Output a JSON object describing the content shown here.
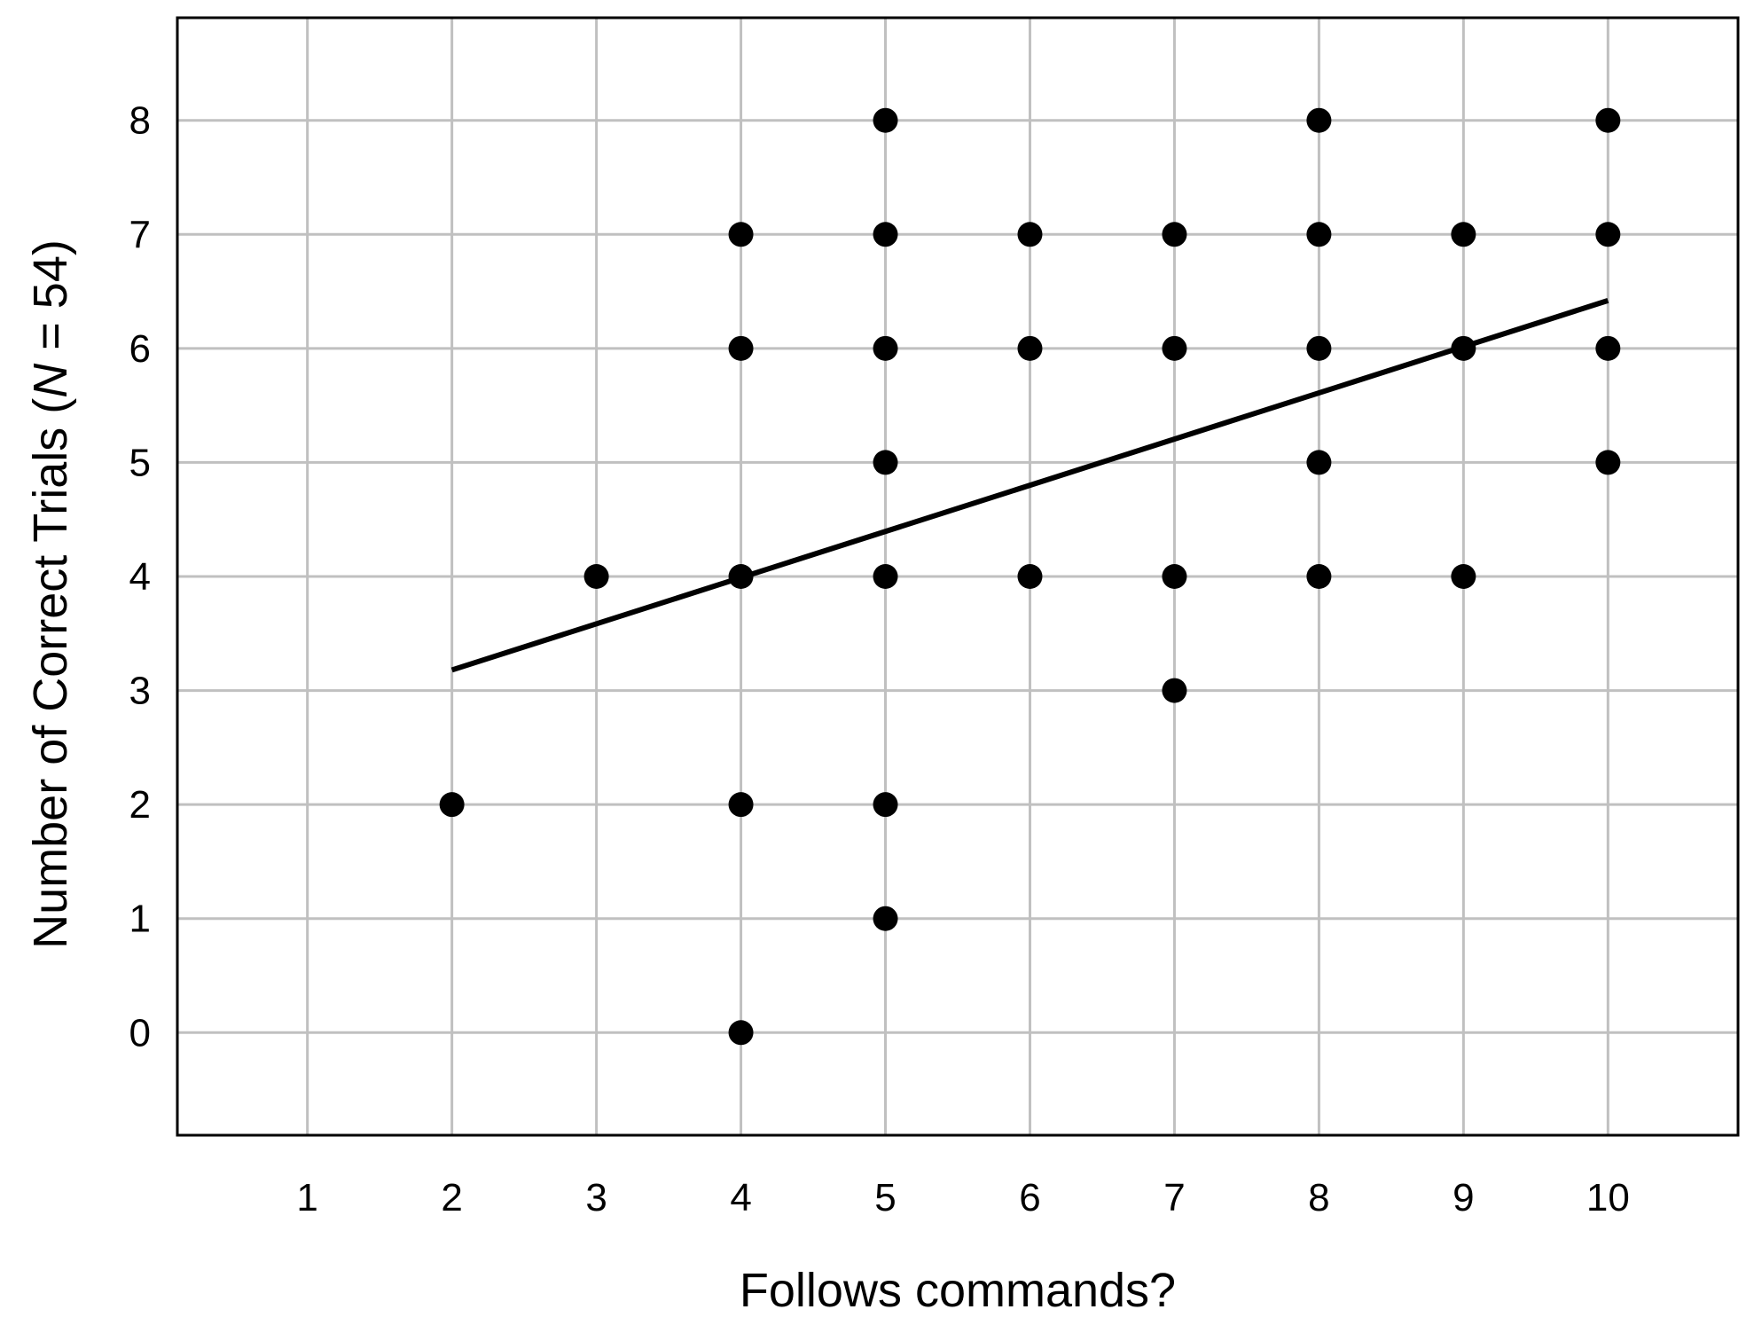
{
  "chart_data": {
    "type": "scatter",
    "xlabel": "Follows commands?",
    "ylabel_prefix": "Number of Correct Trials (",
    "ylabel_italic": "N",
    "ylabel_suffix": " = 54)",
    "xlim": [
      0.1,
      10.9
    ],
    "ylim": [
      -0.9,
      8.9
    ],
    "x_ticks": [
      1,
      2,
      3,
      4,
      5,
      6,
      7,
      8,
      9,
      10
    ],
    "y_ticks": [
      0,
      1,
      2,
      3,
      4,
      5,
      6,
      7,
      8
    ],
    "grid": true,
    "point_color": "#000000",
    "grid_color": "#c0c0c0",
    "points": [
      {
        "x": 2,
        "y": 2
      },
      {
        "x": 3,
        "y": 4
      },
      {
        "x": 4,
        "y": 0
      },
      {
        "x": 4,
        "y": 2
      },
      {
        "x": 4,
        "y": 4
      },
      {
        "x": 4,
        "y": 6
      },
      {
        "x": 4,
        "y": 7
      },
      {
        "x": 5,
        "y": 1
      },
      {
        "x": 5,
        "y": 2
      },
      {
        "x": 5,
        "y": 4
      },
      {
        "x": 5,
        "y": 5
      },
      {
        "x": 5,
        "y": 6
      },
      {
        "x": 5,
        "y": 7
      },
      {
        "x": 5,
        "y": 8
      },
      {
        "x": 6,
        "y": 4
      },
      {
        "x": 6,
        "y": 6
      },
      {
        "x": 6,
        "y": 7
      },
      {
        "x": 7,
        "y": 3
      },
      {
        "x": 7,
        "y": 4
      },
      {
        "x": 7,
        "y": 6
      },
      {
        "x": 7,
        "y": 7
      },
      {
        "x": 8,
        "y": 4
      },
      {
        "x": 8,
        "y": 5
      },
      {
        "x": 8,
        "y": 6
      },
      {
        "x": 8,
        "y": 7
      },
      {
        "x": 8,
        "y": 8
      },
      {
        "x": 9,
        "y": 4
      },
      {
        "x": 9,
        "y": 6
      },
      {
        "x": 9,
        "y": 7
      },
      {
        "x": 10,
        "y": 5
      },
      {
        "x": 10,
        "y": 6
      },
      {
        "x": 10,
        "y": 7
      },
      {
        "x": 10,
        "y": 8
      }
    ],
    "trend_line": {
      "start": {
        "x": 2,
        "y": 3.18
      },
      "end": {
        "x": 10,
        "y": 6.42
      }
    }
  }
}
